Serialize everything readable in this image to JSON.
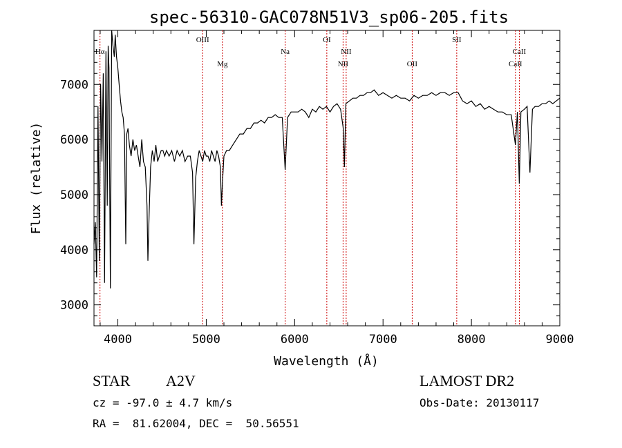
{
  "chart_data": {
    "type": "line",
    "title": "spec-56310-GAC078N51V3_sp06-205.fits",
    "xlabel": "Wavelength (Å)",
    "ylabel": "Flux (relative)",
    "xlim": [
      3730,
      9000
    ],
    "ylim": [
      2620,
      7980
    ],
    "xticks": [
      4000,
      5000,
      6000,
      7000,
      8000,
      9000
    ],
    "yticks": [
      3000,
      4000,
      5000,
      6000,
      7000
    ],
    "grid": false,
    "series": [
      {
        "x": [
          3730,
          3745,
          3760,
          3775,
          3790,
          3805,
          3820,
          3835,
          3850,
          3865,
          3880,
          3890,
          3900,
          3915,
          3930,
          3945,
          3960,
          3970,
          3985,
          4000,
          4015,
          4030,
          4045,
          4060,
          4075,
          4090,
          4101,
          4115,
          4130,
          4150,
          4170,
          4190,
          4210,
          4230,
          4250,
          4270,
          4290,
          4310,
          4330,
          4340,
          4355,
          4370,
          4390,
          4410,
          4430,
          4450,
          4470,
          4490,
          4510,
          4530,
          4550,
          4580,
          4610,
          4640,
          4670,
          4700,
          4730,
          4760,
          4790,
          4820,
          4845,
          4861,
          4880,
          4900,
          4920,
          4940,
          4960,
          4980,
          5000,
          5020,
          5040,
          5060,
          5080,
          5100,
          5120,
          5140,
          5160,
          5172,
          5183,
          5200,
          5230,
          5260,
          5300,
          5340,
          5380,
          5420,
          5460,
          5500,
          5540,
          5580,
          5620,
          5660,
          5700,
          5740,
          5780,
          5820,
          5860,
          5893,
          5920,
          5960,
          6000,
          6040,
          6080,
          6120,
          6160,
          6200,
          6240,
          6280,
          6320,
          6360,
          6400,
          6440,
          6480,
          6520,
          6550,
          6563,
          6580,
          6620,
          6660,
          6700,
          6740,
          6780,
          6820,
          6860,
          6900,
          6950,
          7000,
          7050,
          7100,
          7150,
          7200,
          7250,
          7300,
          7350,
          7400,
          7450,
          7500,
          7550,
          7600,
          7650,
          7700,
          7750,
          7800,
          7850,
          7900,
          7950,
          8000,
          8050,
          8100,
          8150,
          8200,
          8250,
          8300,
          8350,
          8400,
          8450,
          8498,
          8520,
          8542,
          8560,
          8600,
          8630,
          8662,
          8690,
          8720,
          8760,
          8800,
          8840,
          8880,
          8920,
          8960,
          9000
        ],
        "values": [
          4100,
          4500,
          3500,
          6600,
          3800,
          7000,
          5600,
          7200,
          3400,
          7600,
          4800,
          7700,
          7300,
          3300,
          8000,
          7700,
          7500,
          7900,
          7500,
          7300,
          7000,
          6700,
          6500,
          6400,
          6100,
          4100,
          6100,
          6200,
          5900,
          5700,
          6000,
          5800,
          5900,
          5700,
          5500,
          6000,
          5600,
          5500,
          4800,
          3800,
          4700,
          5500,
          5800,
          5600,
          5900,
          5600,
          5700,
          5800,
          5800,
          5700,
          5800,
          5700,
          5800,
          5600,
          5800,
          5700,
          5800,
          5600,
          5700,
          5700,
          5400,
          4100,
          5300,
          5600,
          5800,
          5700,
          5600,
          5800,
          5700,
          5700,
          5600,
          5800,
          5700,
          5600,
          5800,
          5700,
          5500,
          4800,
          5200,
          5700,
          5800,
          5800,
          5900,
          6000,
          6100,
          6100,
          6200,
          6200,
          6300,
          6300,
          6350,
          6300,
          6400,
          6400,
          6450,
          6400,
          6400,
          5450,
          6400,
          6500,
          6500,
          6500,
          6550,
          6500,
          6400,
          6550,
          6500,
          6600,
          6550,
          6600,
          6500,
          6600,
          6650,
          6550,
          6200,
          5500,
          6650,
          6700,
          6750,
          6750,
          6800,
          6800,
          6850,
          6850,
          6900,
          6800,
          6850,
          6800,
          6750,
          6800,
          6750,
          6750,
          6700,
          6800,
          6750,
          6800,
          6800,
          6850,
          6800,
          6850,
          6850,
          6800,
          6850,
          6850,
          6700,
          6650,
          6700,
          6600,
          6650,
          6550,
          6600,
          6550,
          6500,
          6500,
          6450,
          6450,
          5900,
          6500,
          5200,
          6500,
          6550,
          6600,
          5400,
          6550,
          6600,
          6600,
          6650,
          6650,
          6700,
          6650,
          6700,
          6750
        ]
      }
    ],
    "line_labels": [
      {
        "label": "Hα",
        "x": 3798,
        "row": 2
      },
      {
        "label": "OIII",
        "x": 4959,
        "row": 1
      },
      {
        "label": "Mg",
        "x": 5183,
        "row": 3
      },
      {
        "label": "Na",
        "x": 5893,
        "row": 2
      },
      {
        "label": "OI",
        "x": 6364,
        "row": 1
      },
      {
        "label": "NII",
        "x": 6548,
        "row": 3
      },
      {
        "label": "NII",
        "x": 6583,
        "row": 2
      },
      {
        "label": "OII",
        "x": 7330,
        "row": 3
      },
      {
        "label": "SII",
        "x": 7834,
        "row": 1
      },
      {
        "label": "CaII",
        "x": 8498,
        "row": 3
      },
      {
        "label": "CaII",
        "x": 8542,
        "row": 2
      }
    ],
    "colors": {
      "spectrum": "#000000",
      "lines": "#cc0000",
      "axes": "#000000"
    }
  },
  "info": {
    "object_class": "STAR",
    "subclass": "A2V",
    "survey": "LAMOST DR2",
    "cz": "cz = -97.0 ± 4.7 km/s",
    "obs_date": "Obs-Date: 20130117",
    "coords": "RA =  81.62004, DEC =  50.56551"
  }
}
